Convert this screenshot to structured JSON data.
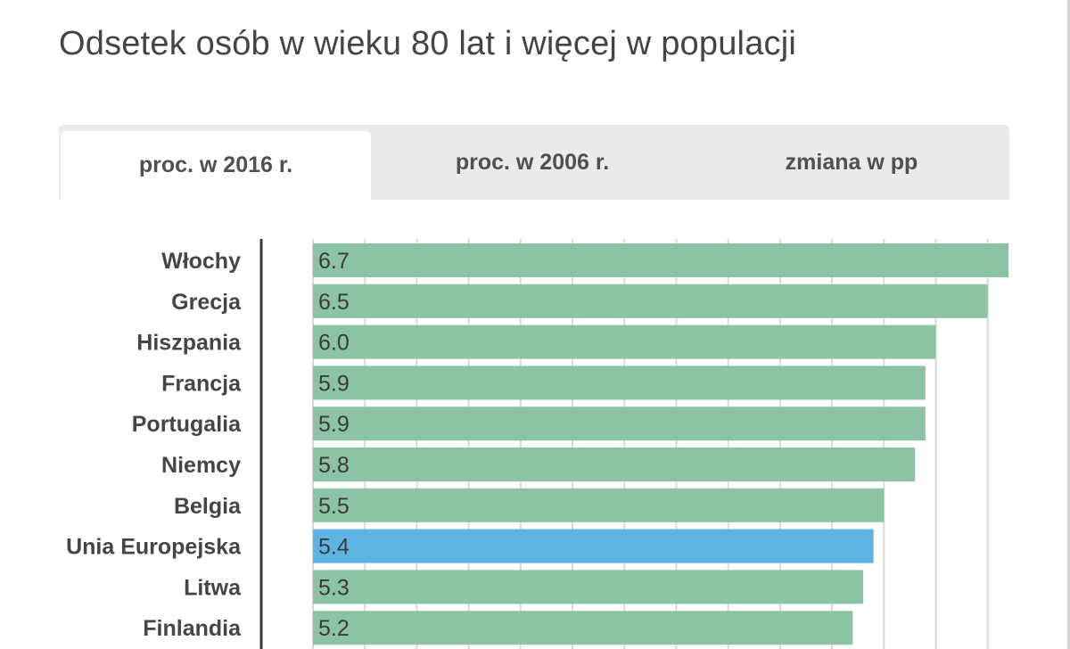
{
  "title": "Odsetek osób w wieku 80 lat i więcej w populacji",
  "tabs": [
    {
      "label": "proc. w 2016 r.",
      "active": true
    },
    {
      "label": "proc. w 2006 r.",
      "active": false
    },
    {
      "label": "zmiana w pp",
      "active": false
    }
  ],
  "colors": {
    "bar": "#8dc3a5",
    "bar_highlight": "#5db4e3",
    "axis": "#3a3a3a",
    "grid": "#d9d9d9"
  },
  "chart_data": {
    "type": "bar",
    "orientation": "horizontal",
    "categories": [
      "Włochy",
      "Grecja",
      "Hiszpania",
      "Francja",
      "Portugalia",
      "Niemcy",
      "Belgia",
      "Unia Europejska",
      "Litwa",
      "Finlandia"
    ],
    "values": [
      6.7,
      6.5,
      6.0,
      5.9,
      5.9,
      5.8,
      5.5,
      5.4,
      5.3,
      5.2
    ],
    "value_labels": [
      "6.7",
      "6.5",
      "6.0",
      "5.9",
      "5.9",
      "5.8",
      "5.5",
      "5.4",
      "5.3",
      "5.2"
    ],
    "highlight": "Unia Europejska",
    "xlim": [
      0,
      6.7
    ],
    "grid": true,
    "title": "Odsetek osób w wieku 80 lat i więcej w populacji"
  }
}
